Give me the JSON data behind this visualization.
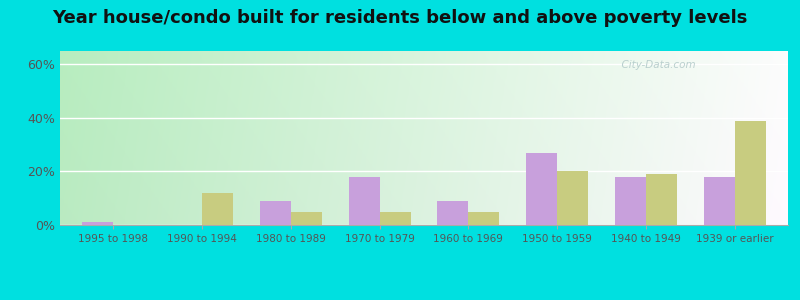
{
  "title": "Year house/condo built for residents below and above poverty levels",
  "categories": [
    "1995 to 1998",
    "1990 to 1994",
    "1980 to 1989",
    "1970 to 1979",
    "1960 to 1969",
    "1950 to 1959",
    "1940 to 1949",
    "1939 or earlier"
  ],
  "below_poverty": [
    1,
    0,
    9,
    18,
    9,
    27,
    18,
    18
  ],
  "above_poverty": [
    0,
    12,
    5,
    5,
    5,
    20,
    19,
    39
  ],
  "below_color": "#c8a0dc",
  "above_color": "#c8cc80",
  "ylabel_ticks": [
    "0%",
    "20%",
    "40%",
    "60%"
  ],
  "ytick_vals": [
    0,
    20,
    40,
    60
  ],
  "ylim": [
    0,
    65
  ],
  "bg_topleft": "#b8e8c0",
  "bg_topright": "#d8eee8",
  "bg_bottomleft": "#e8f4e0",
  "bg_bottomright": "#f8f8f4",
  "outer_bg": "#00e0e0",
  "grid_color": "#ffffff",
  "bar_width": 0.35,
  "title_fontsize": 13,
  "tick_fontsize": 7.5,
  "ytick_fontsize": 9
}
